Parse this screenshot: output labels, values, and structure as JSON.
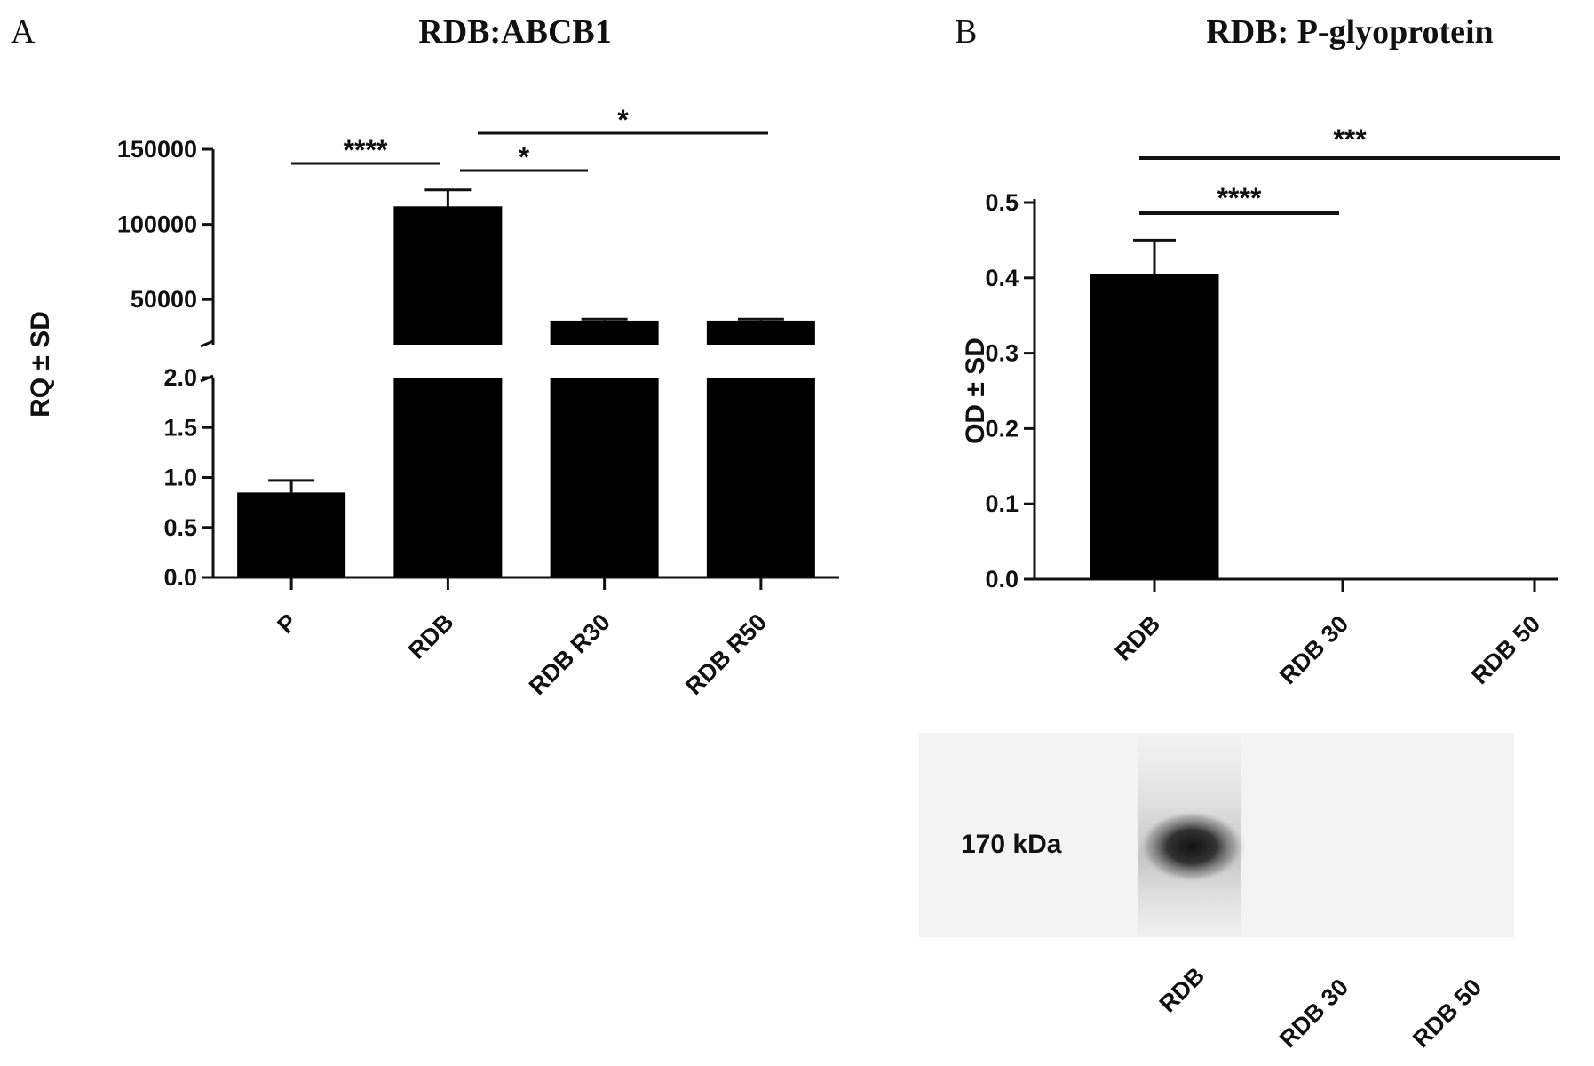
{
  "panels": {
    "a": {
      "letter": "A",
      "title": "RDB:ABCB1"
    },
    "b": {
      "letter": "B",
      "title": "RDB: P-glyoprotein"
    }
  },
  "chart_data": [
    {
      "type": "bar",
      "title": "RDB:ABCB1",
      "ylabel": "RQ ± SD",
      "xlabel": "",
      "categories": [
        "P",
        "RDB",
        "RDB R30",
        "RDB R50"
      ],
      "values": [
        0.85,
        112000,
        36000,
        36000
      ],
      "errors": [
        0.12,
        11000,
        1000,
        1000
      ],
      "broken_axis": {
        "lower": {
          "ylim": [
            0,
            2.0
          ],
          "ticks": [
            "0.0",
            "0.5",
            "1.0",
            "1.5",
            "2.0"
          ]
        },
        "upper": {
          "ylim": [
            20000,
            150000
          ],
          "ticks": [
            "50000",
            "100000",
            "150000"
          ]
        }
      },
      "significance": [
        {
          "from": "P",
          "to": "RDB",
          "label": "****"
        },
        {
          "from": "RDB",
          "to": "RDB R30",
          "label": "*"
        },
        {
          "from": "RDB",
          "to": "RDB R50",
          "label": "*"
        }
      ],
      "bar_color": "#000000",
      "grid": false
    },
    {
      "type": "bar",
      "title": "RDB: P-glyoprotein",
      "ylabel": "OD ± SD",
      "xlabel": "",
      "categories": [
        "RDB",
        "RDB 30",
        "RDB 50"
      ],
      "values": [
        0.405,
        0,
        0
      ],
      "errors": [
        0.045,
        0,
        0
      ],
      "ylim": [
        0,
        0.5
      ],
      "ticks": [
        "0.0",
        "0.1",
        "0.2",
        "0.3",
        "0.4",
        "0.5"
      ],
      "significance": [
        {
          "from": "RDB",
          "to": "RDB 30",
          "label": "****"
        },
        {
          "from": "RDB",
          "to": "RDB 50",
          "label": "***"
        }
      ],
      "bar_color": "#000000",
      "grid": false
    }
  ],
  "blot": {
    "band_label": "170 kDa",
    "lanes": [
      "RDB",
      "RDB 30",
      "RDB 50"
    ],
    "band_present": [
      true,
      false,
      false
    ]
  }
}
